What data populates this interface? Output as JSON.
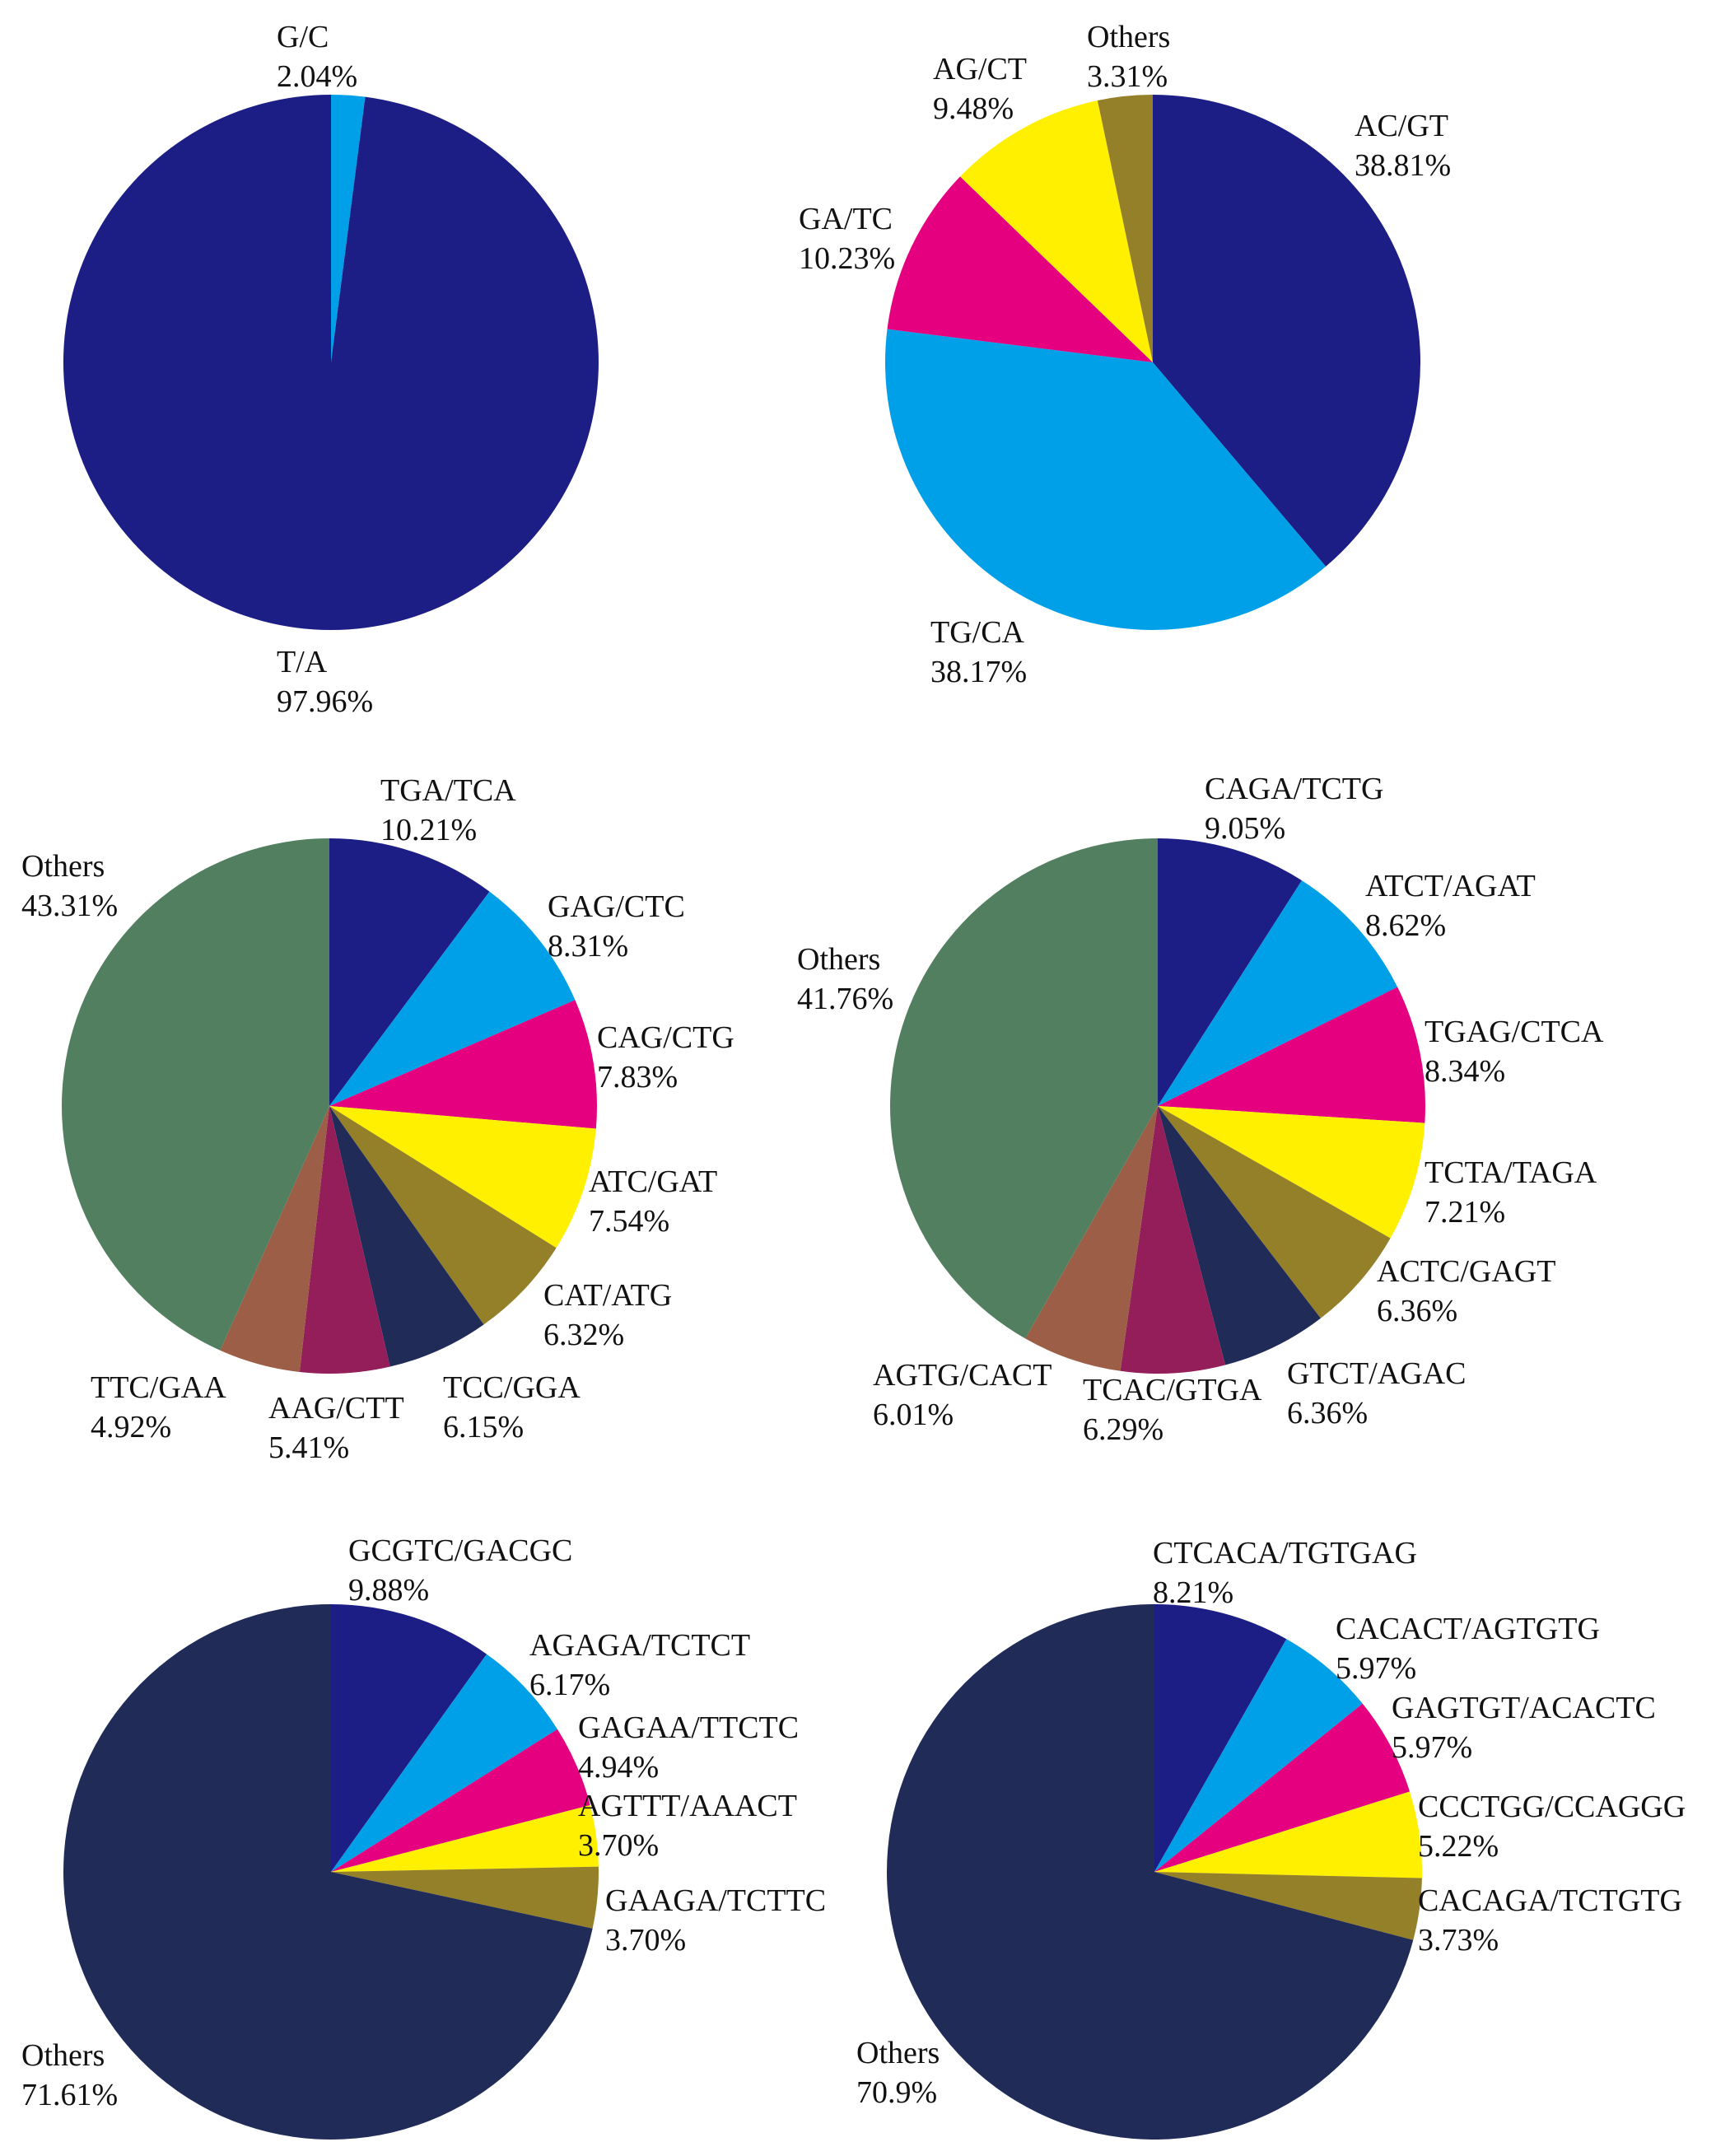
{
  "chart_data": [
    {
      "type": "pie",
      "title": "",
      "slices": [
        {
          "label": "G/C",
          "value": 2.04,
          "value_label": "2.04%",
          "color": "#00a0e9"
        },
        {
          "label": "T/A",
          "value": 97.96,
          "value_label": "97.96%",
          "color": "#1d1e85"
        }
      ]
    },
    {
      "type": "pie",
      "title": "",
      "slices": [
        {
          "label": "AC/GT",
          "value": 38.81,
          "value_label": "38.81%",
          "color": "#1d1e85"
        },
        {
          "label": "TG/CA",
          "value": 38.17,
          "value_label": "38.17%",
          "color": "#00a0e9"
        },
        {
          "label": "GA/TC",
          "value": 10.23,
          "value_label": "10.23%",
          "color": "#e4007f"
        },
        {
          "label": "AG/CT",
          "value": 9.48,
          "value_label": "9.48%",
          "color": "#fff000"
        },
        {
          "label": "Others",
          "value": 3.31,
          "value_label": "3.31%",
          "color": "#95802a"
        }
      ]
    },
    {
      "type": "pie",
      "title": "",
      "slices": [
        {
          "label": "TGA/TCA",
          "value": 10.21,
          "value_label": "10.21%",
          "color": "#1d1e85"
        },
        {
          "label": "GAG/CTC",
          "value": 8.31,
          "value_label": "8.31%",
          "color": "#00a0e9"
        },
        {
          "label": "CAG/CTG",
          "value": 7.83,
          "value_label": "7.83%",
          "color": "#e4007f"
        },
        {
          "label": "ATC/GAT",
          "value": 7.54,
          "value_label": "7.54%",
          "color": "#fff000"
        },
        {
          "label": "CAT/ATG",
          "value": 6.32,
          "value_label": "6.32%",
          "color": "#95802a"
        },
        {
          "label": "TCC/GGA",
          "value": 6.15,
          "value_label": "6.15%",
          "color": "#202b58"
        },
        {
          "label": "AAG/CTT",
          "value": 5.41,
          "value_label": "5.41%",
          "color": "#931e5a"
        },
        {
          "label": "TTC/GAA",
          "value": 4.92,
          "value_label": "4.92%",
          "color": "#9d5e47"
        },
        {
          "label": "Others",
          "value": 43.31,
          "value_label": "43.31%",
          "color": "#517f5f"
        }
      ]
    },
    {
      "type": "pie",
      "title": "",
      "slices": [
        {
          "label": "CAGA/TCTG",
          "value": 9.05,
          "value_label": "9.05%",
          "color": "#1d1e85"
        },
        {
          "label": "ATCT/AGAT",
          "value": 8.62,
          "value_label": "8.62%",
          "color": "#00a0e9"
        },
        {
          "label": "TGAG/CTCA",
          "value": 8.34,
          "value_label": "8.34%",
          "color": "#e4007f"
        },
        {
          "label": "TCTA/TAGA",
          "value": 7.21,
          "value_label": "7.21%",
          "color": "#fff000"
        },
        {
          "label": "ACTC/GAGT",
          "value": 6.36,
          "value_label": "6.36%",
          "color": "#95802a"
        },
        {
          "label": "GTCT/AGAC",
          "value": 6.36,
          "value_label": "6.36%",
          "color": "#202b58"
        },
        {
          "label": "TCAC/GTGA",
          "value": 6.29,
          "value_label": "6.29%",
          "color": "#931e5a"
        },
        {
          "label": "AGTG/CACT",
          "value": 6.01,
          "value_label": "6.01%",
          "color": "#9d5e47"
        },
        {
          "label": "Others",
          "value": 41.76,
          "value_label": "41.76%",
          "color": "#517f5f"
        }
      ]
    },
    {
      "type": "pie",
      "title": "",
      "slices": [
        {
          "label": "GCGTC/GACGC",
          "value": 9.88,
          "value_label": "9.88%",
          "color": "#1d1e85"
        },
        {
          "label": "AGAGA/TCTCT",
          "value": 6.17,
          "value_label": "6.17%",
          "color": "#00a0e9"
        },
        {
          "label": "GAGAA/TTCTC",
          "value": 4.94,
          "value_label": "4.94%",
          "color": "#e4007f"
        },
        {
          "label": "AGTTT/AAACT",
          "value": 3.7,
          "value_label": "3.70%",
          "color": "#fff000"
        },
        {
          "label": "GAAGA/TCTTC",
          "value": 3.7,
          "value_label": "3.70%",
          "color": "#95802a"
        },
        {
          "label": "Others",
          "value": 71.61,
          "value_label": "71.61%",
          "color": "#202b58"
        }
      ]
    },
    {
      "type": "pie",
      "title": "",
      "slices": [
        {
          "label": "CTCACA/TGTGAG",
          "value": 8.21,
          "value_label": "8.21%",
          "color": "#1d1e85"
        },
        {
          "label": "CACACT/AGTGTG",
          "value": 5.97,
          "value_label": "5.97%",
          "color": "#00a0e9"
        },
        {
          "label": "GAGTGT/ACACTC",
          "value": 5.97,
          "value_label": "5.97%",
          "color": "#e4007f"
        },
        {
          "label": "CCCTGG/CCAGGG",
          "value": 5.22,
          "value_label": "5.22%",
          "color": "#fff000"
        },
        {
          "label": "CACAGA/TCTGTG",
          "value": 3.73,
          "value_label": "3.73%",
          "color": "#95802a"
        },
        {
          "label": "Others",
          "value": 70.9,
          "value_label": "70.9%",
          "color": "#202b58"
        }
      ]
    }
  ]
}
